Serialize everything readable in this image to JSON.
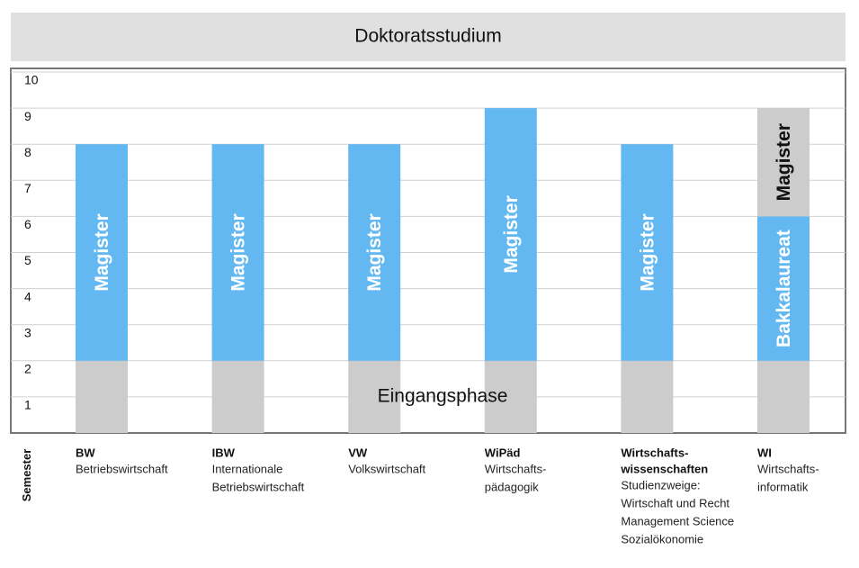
{
  "chart_data": {
    "type": "bar",
    "stacked": true,
    "title": "Doktoratsstudium",
    "y_label": "Semester",
    "categories": [
      [
        "BW"
      ],
      [
        "IBW"
      ],
      [
        "VW"
      ],
      [
        "WiPäd"
      ],
      [
        "Wirtschafts-",
        "wissenschaften"
      ],
      [
        "WI"
      ]
    ],
    "category_descriptions": [
      [
        "Betriebswirtschaft"
      ],
      [
        "Internationale",
        "Betriebswirtschaft"
      ],
      [
        "Volkswirtschaft"
      ],
      [
        "Wirtschafts-",
        "pädagogik"
      ],
      [
        "Studienzweige:",
        "Wirtschaft und Recht",
        "Management Science",
        "Sozialökonomie"
      ],
      [
        "Wirtschafts-",
        "informatik"
      ]
    ],
    "series": [
      {
        "name": "Eingangsphase",
        "color": "#cccccc",
        "values": [
          2,
          2,
          2,
          2,
          2,
          2
        ]
      },
      {
        "name": "Magister",
        "color": "#63b8f2",
        "values": [
          6,
          6,
          6,
          7,
          6,
          null
        ]
      },
      {
        "name": "Bakkalaureat",
        "color": "#63b8f2",
        "values": [
          null,
          null,
          null,
          null,
          null,
          4
        ]
      },
      {
        "name": "Magister",
        "color": "#cccccc",
        "values": [
          null,
          null,
          null,
          null,
          null,
          3
        ]
      }
    ],
    "ylim": [
      0,
      10
    ],
    "yticks": [
      1,
      2,
      3,
      4,
      5,
      6,
      7,
      8,
      9,
      10
    ],
    "grid": true
  }
}
